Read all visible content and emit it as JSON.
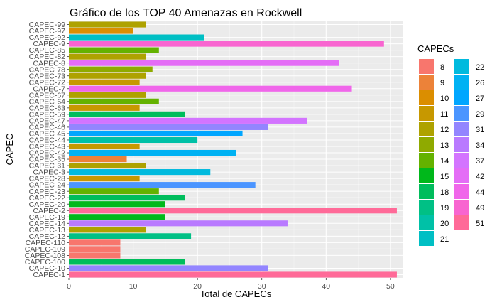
{
  "chart_data": {
    "type": "bar",
    "orientation": "horizontal",
    "title": "Gráfico de los TOP 40 Amenazas en Rockwell",
    "xlabel": "Total de CAPECs",
    "ylabel": "CAPEC",
    "xlim": [
      0,
      52
    ],
    "xticks": [
      0,
      10,
      20,
      30,
      40,
      50
    ],
    "grid": true,
    "legend_title": "CAPECs",
    "legend_position": "right",
    "categories": [
      "CAPEC-99",
      "CAPEC-97",
      "CAPEC-92",
      "CAPEC-9",
      "CAPEC-85",
      "CAPEC-82",
      "CAPEC-8",
      "CAPEC-78",
      "CAPEC-73",
      "CAPEC-72",
      "CAPEC-7",
      "CAPEC-67",
      "CAPEC-64",
      "CAPEC-63",
      "CAPEC-59",
      "CAPEC-47",
      "CAPEC-46",
      "CAPEC-45",
      "CAPEC-44",
      "CAPEC-43",
      "CAPEC-42",
      "CAPEC-35",
      "CAPEC-31",
      "CAPEC-3",
      "CAPEC-28",
      "CAPEC-24",
      "CAPEC-23",
      "CAPEC-22",
      "CAPEC-20",
      "CAPEC-2",
      "CAPEC-19",
      "CAPEC-14",
      "CAPEC-13",
      "CAPEC-12",
      "CAPEC-110",
      "CAPEC-109",
      "CAPEC-108",
      "CAPEC-100",
      "CAPEC-10",
      "CAPEC-1"
    ],
    "values": [
      12,
      10,
      21,
      49,
      14,
      12,
      42,
      13,
      12,
      11,
      44,
      12,
      14,
      11,
      18,
      37,
      31,
      27,
      20,
      11,
      26,
      9,
      12,
      22,
      11,
      29,
      14,
      18,
      15,
      51,
      15,
      34,
      12,
      19,
      8,
      8,
      8,
      18,
      31,
      51
    ],
    "legend_levels": [
      "8",
      "9",
      "10",
      "11",
      "12",
      "13",
      "14",
      "15",
      "18",
      "19",
      "20",
      "21",
      "22",
      "26",
      "27",
      "29",
      "31",
      "34",
      "37",
      "42",
      "44",
      "49",
      "51"
    ],
    "legend_colors": [
      "#F8766D",
      "#EC8239",
      "#DB8E00",
      "#C79800",
      "#AEA200",
      "#8FAA00",
      "#64B200",
      "#00B81B",
      "#00BD5C",
      "#00C085",
      "#00C1A7",
      "#00BFC4",
      "#00BADE",
      "#00B2F3",
      "#00A6FF",
      "#4B95FF",
      "#9385FF",
      "#B97AFF",
      "#D374FF",
      "#E46DF6",
      "#F066EA",
      "#F865D0",
      "#FF6A98"
    ]
  }
}
